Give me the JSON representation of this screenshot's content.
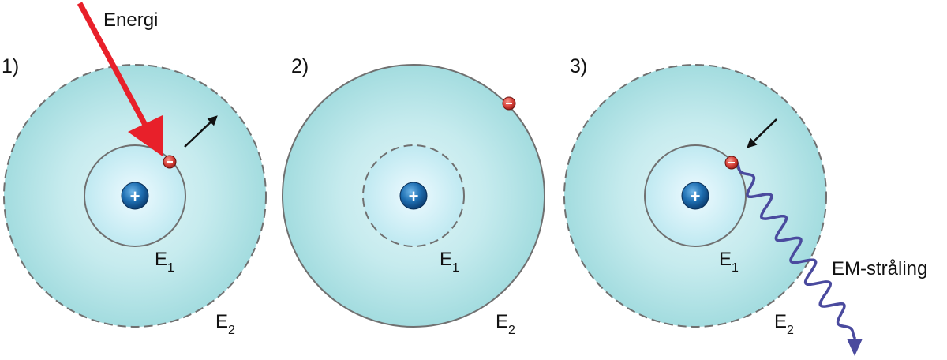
{
  "labels": {
    "energy": "Energi",
    "em_radiation": "EM-stråling"
  },
  "panels": [
    {
      "number": "1)",
      "level1": "E",
      "level1_sub": "1",
      "level2": "E",
      "level2_sub": "2"
    },
    {
      "number": "2)",
      "level1": "E",
      "level1_sub": "1",
      "level2": "E",
      "level2_sub": "2"
    },
    {
      "number": "3)",
      "level1": "E",
      "level1_sub": "1",
      "level2": "E",
      "level2_sub": "2"
    }
  ],
  "symbols": {
    "nucleus": "+",
    "electron": "−"
  },
  "colors": {
    "orbit_fill_outer": "#a6dde0",
    "orbit_fill_inner": "#dff4f8",
    "orbit_stroke": "#6f6f6f",
    "energy_arrow": "#e8202a",
    "radiation_wave": "#4a4a9e",
    "nucleus": "#1f6fb0",
    "electron": "#d9413a"
  }
}
